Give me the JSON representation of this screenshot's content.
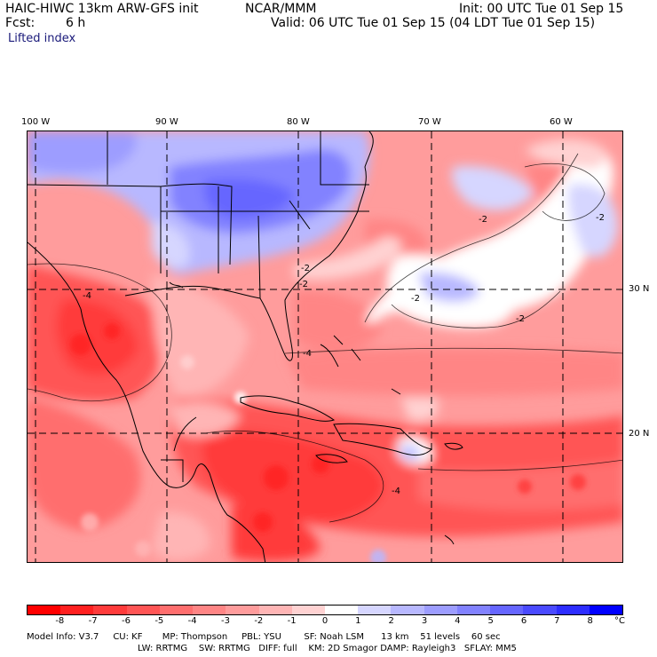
{
  "header": {
    "model_line": "HAIC-HIWC 13km ARW-GFS init",
    "org": "NCAR/MMM",
    "init": "Init: 00 UTC Tue 01 Sep 15",
    "fcst_label": "Fcst:",
    "fcst_value": "6 h",
    "valid": "Valid: 06 UTC Tue 01 Sep 15 (04 LDT Tue 01 Sep 15)",
    "field": "Lifted index"
  },
  "map": {
    "lon_labels": [
      "100 W",
      "90 W",
      "80 W",
      "70 W",
      "60 W"
    ],
    "lat_labels": [
      "30 N",
      "20 N"
    ],
    "contour_labels": [
      "-2",
      "-2",
      "-2",
      "-2",
      "-2",
      "-2",
      "-4",
      "-4",
      "-4"
    ]
  },
  "legend": {
    "ticks": [
      "-8",
      "-7",
      "-6",
      "-5",
      "-4",
      "-3",
      "-2",
      "-1",
      "0",
      "1",
      "2",
      "3",
      "4",
      "5",
      "6",
      "7",
      "8"
    ],
    "unit": "°C",
    "colors": [
      "#ff0000",
      "#ff2020",
      "#ff3b3b",
      "#ff5555",
      "#ff6e6e",
      "#ff8585",
      "#ff9c9c",
      "#ffb5b5",
      "#ffd2d2",
      "#ffffff",
      "#d6d6ff",
      "#b8b8ff",
      "#9d9dff",
      "#8282ff",
      "#6666ff",
      "#4a4aff",
      "#2d2dff",
      "#0000ff"
    ]
  },
  "info": {
    "line1": "Model Info: V3.7     CU: KF       MP: Thompson     PBL: YSU        SF: Noah LSM      13 km    51 levels    60 sec",
    "line2": "LW: RRTMG    SW: RRTMG   DIFF: full    KM: 2D Smagor DAMP: Rayleigh3   SFLAY: MM5"
  }
}
